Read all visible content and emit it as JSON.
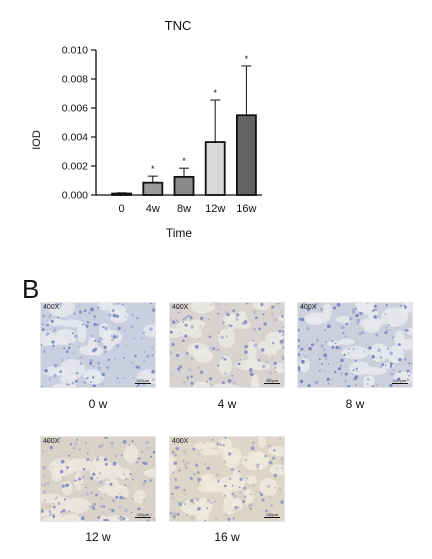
{
  "chart_data": {
    "type": "bar",
    "title": "TNC",
    "xlabel": "Time",
    "ylabel": "IOD",
    "categories": [
      "0",
      "4w",
      "8w",
      "12w",
      "16w"
    ],
    "values": [
      0.0001,
      0.00085,
      0.00125,
      0.00365,
      0.0055
    ],
    "errors": [
      5e-05,
      0.00045,
      0.0006,
      0.0029,
      0.0034
    ],
    "significance": [
      "",
      "*",
      "*",
      "*",
      "*"
    ],
    "ylim": [
      0,
      0.01
    ],
    "yticks": [
      "0.000",
      "0.002",
      "0.004",
      "0.006",
      "0.008",
      "0.010"
    ],
    "bar_colors": [
      "#2b2b2b",
      "#9b9b9b",
      "#8a8a8a",
      "#d9d9d9",
      "#636363"
    ],
    "grid": false
  },
  "panel_b": {
    "letter": "B",
    "images": [
      {
        "magnification": "400X",
        "caption": "0 w",
        "scale": "100μm"
      },
      {
        "magnification": "400X",
        "caption": "4 w",
        "scale": "100μm"
      },
      {
        "magnification": "400X",
        "caption": "8 w",
        "scale": "100μm"
      },
      {
        "magnification": "400X",
        "caption": "12 w",
        "scale": "100μm"
      },
      {
        "magnification": "400X",
        "caption": "16 w",
        "scale": "100μm"
      }
    ]
  }
}
